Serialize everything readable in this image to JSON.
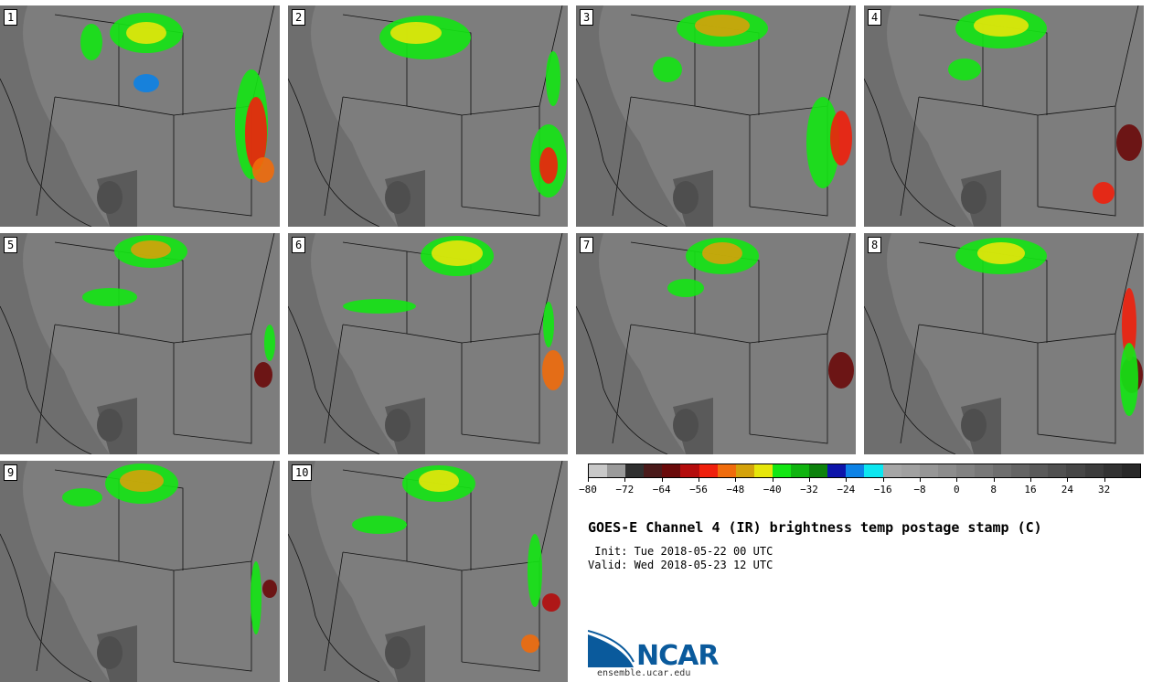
{
  "panels": [
    {
      "label": "1"
    },
    {
      "label": "2"
    },
    {
      "label": "3"
    },
    {
      "label": "4"
    },
    {
      "label": "5"
    },
    {
      "label": "6"
    },
    {
      "label": "7"
    },
    {
      "label": "8"
    },
    {
      "label": "9"
    },
    {
      "label": "10"
    }
  ],
  "colorbar": {
    "colors": [
      "#c8c8c8",
      "#9a9a9a",
      "#303030",
      "#4a1a1a",
      "#6a0a0a",
      "#b40c0c",
      "#f0200c",
      "#f06c0c",
      "#d4a20a",
      "#e6e60a",
      "#14e614",
      "#10b410",
      "#0c820c",
      "#0c14aa",
      "#0c82e6",
      "#0ce6f0",
      "#a6a6a6",
      "#a0a0a0",
      "#969696",
      "#8c8c8c",
      "#828282",
      "#787878",
      "#6e6e6e",
      "#646464",
      "#5a5a5a",
      "#505050",
      "#464646",
      "#3c3c3c",
      "#323232",
      "#282828"
    ],
    "tick_labels": [
      "−80",
      "−72",
      "−64",
      "−56",
      "−48",
      "−40",
      "−32",
      "−24",
      "−16",
      "−8",
      "0",
      "8",
      "16",
      "24",
      "32"
    ]
  },
  "title": "GOES-E Channel 4 (IR) brightness temp postage stamp (C)",
  "init": " Init: Tue 2018-05-22 00 UTC",
  "valid": "Valid: Wed 2018-05-23 12 UTC",
  "logo": {
    "name": "NCAR",
    "url": "ensemble.ucar.edu"
  }
}
